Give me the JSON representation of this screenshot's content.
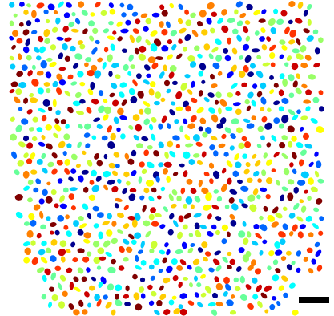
{
  "figure": {
    "kind": "segmentation-label-map",
    "background_color": "#ffffff",
    "scale_bar_color": "#000000",
    "palette": [
      "#00008f",
      "#0000ff",
      "#0066ff",
      "#00ccff",
      "#00ffff",
      "#66ff99",
      "#99ff66",
      "#ccff33",
      "#ffff00",
      "#ffcc00",
      "#ff8000",
      "#ff3300",
      "#cc0000",
      "#800000"
    ]
  }
}
